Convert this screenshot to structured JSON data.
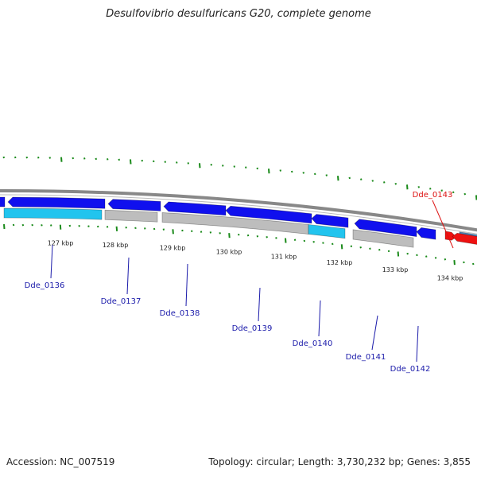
{
  "title": "Desulfovibrio desulfuricans G20, complete genome",
  "footer": {
    "accession": "Accession: NC_007519",
    "summary": "Topology: circular; Length: 3,730,232 bp; Genes: 3,855"
  },
  "map": {
    "axis_ticks": [
      "127 kbp",
      "128 kbp",
      "129 kbp",
      "130 kbp",
      "131 kbp",
      "132 kbp",
      "133 kbp",
      "134 kbp"
    ],
    "genes": [
      {
        "label": "Dde_0136",
        "color": "#1a1aaa"
      },
      {
        "label": "Dde_0137",
        "color": "#1a1aaa"
      },
      {
        "label": "Dde_0138",
        "color": "#1a1aaa"
      },
      {
        "label": "Dde_0139",
        "color": "#1a1aaa"
      },
      {
        "label": "Dde_0140",
        "color": "#1a1aaa"
      },
      {
        "label": "Dde_0141",
        "color": "#1a1aaa"
      },
      {
        "label": "Dde_0142",
        "color": "#1a1aaa"
      },
      {
        "label": "Dde_0143",
        "color": "#dd1111"
      }
    ],
    "colors": {
      "cds": "#1010ee",
      "gene_light": "#22c4ee",
      "gene_grey": "#bdbdbd",
      "rna": "#ee1111",
      "backbone": "#888888",
      "tick": "#1a8a1a",
      "steelblue": "#4a82b8"
    }
  }
}
